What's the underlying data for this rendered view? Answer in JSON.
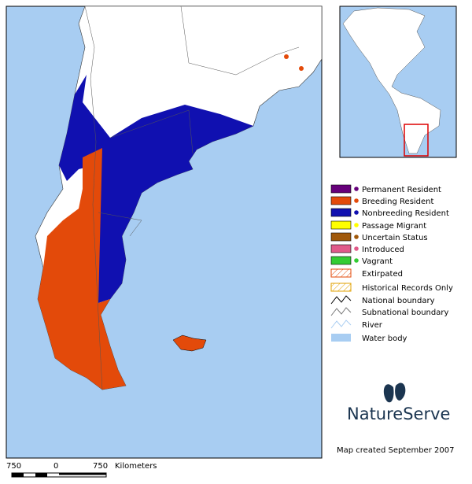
{
  "legend": [
    {
      "label": "Permanent Resident",
      "color": "#66007a"
    },
    {
      "label": "Breeding Resident",
      "color": "#e34a0a"
    },
    {
      "label": "Nonbreeding Resident",
      "color": "#1010b0"
    },
    {
      "label": "Passage Migrant",
      "color": "#ffff00"
    },
    {
      "label": "Uncertain Status",
      "color": "#a0580a"
    },
    {
      "label": "Introduced",
      "color": "#e05a8a"
    },
    {
      "label": "Vagrant",
      "color": "#33cc33"
    },
    {
      "label": "Extirpated"
    },
    {
      "label": "Historical Records Only"
    },
    {
      "label": "National boundary"
    },
    {
      "label": "Subnational boundary"
    },
    {
      "label": "River"
    },
    {
      "label": "Water body",
      "color": "#a8cdf2"
    }
  ],
  "scale": {
    "labels": [
      "750",
      "0",
      "750"
    ],
    "unit": "Kilometers"
  },
  "logo": "NatureServe",
  "credit": "Map created September 2007"
}
